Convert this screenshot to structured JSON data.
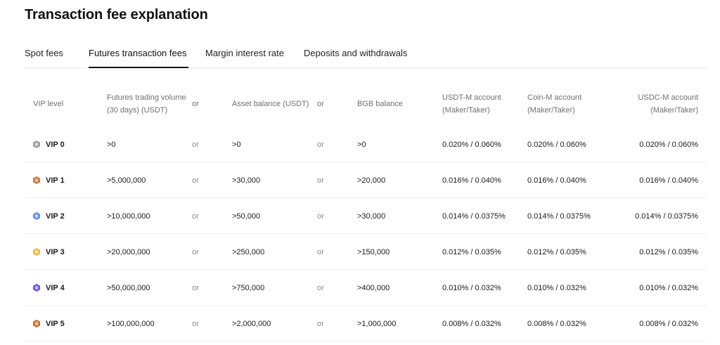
{
  "page": {
    "title": "Transaction fee explanation"
  },
  "tabs": [
    {
      "label": "Spot fees",
      "active": false
    },
    {
      "label": "Futures transaction fees",
      "active": true
    },
    {
      "label": "Margin interest rate",
      "active": false
    },
    {
      "label": "Deposits and withdrawals",
      "active": false
    }
  ],
  "table": {
    "headers": {
      "vip": "VIP level",
      "volume_line1": "Futures trading volume",
      "volume_line2": "(30 days) (USDT)",
      "or": "or",
      "asset": "Asset balance (USDT)",
      "bgb": "BGB balance",
      "usdtm_line1": "USDT-M account",
      "usdtm_line2": "(Maker/Taker)",
      "coinm_line1": "Coin-M account",
      "coinm_line2": "(Maker/Taker)",
      "usdcm_line1": "USDC-M account",
      "usdcm_line2": "(Maker/Taker)"
    },
    "rows": [
      {
        "vip": "VIP 0",
        "icon": "vip-0-badge-icon",
        "icon_color": "#9a9a9a",
        "volume": ">0",
        "or": "or",
        "asset": ">0",
        "bgb": ">0",
        "usdtm": "0.020% / 0.060%",
        "coinm": "0.020% / 0.060%",
        "usdcm": "0.020% / 0.060%"
      },
      {
        "vip": "VIP 1",
        "icon": "vip-1-badge-icon",
        "icon_color": "#c8793a",
        "volume": ">5,000,000",
        "or": "or",
        "asset": ">30,000",
        "bgb": ">20,000",
        "usdtm": "0.016% / 0.040%",
        "coinm": "0.016% / 0.040%",
        "usdcm": "0.016% / 0.040%"
      },
      {
        "vip": "VIP 2",
        "icon": "vip-2-badge-icon",
        "icon_color": "#5b8def",
        "volume": ">10,000,000",
        "or": "or",
        "asset": ">50,000",
        "bgb": ">30,000",
        "usdtm": "0.014% / 0.0375%",
        "coinm": "0.014% / 0.0375%",
        "usdcm": "0.014% / 0.0375%"
      },
      {
        "vip": "VIP 3",
        "icon": "vip-3-badge-icon",
        "icon_color": "#f0b43c",
        "volume": ">20,000,000",
        "or": "or",
        "asset": ">250,000",
        "bgb": ">150,000",
        "usdtm": "0.012% / 0.035%",
        "coinm": "0.012% / 0.035%",
        "usdcm": "0.012% / 0.035%"
      },
      {
        "vip": "VIP 4",
        "icon": "vip-4-badge-icon",
        "icon_color": "#6a4ee8",
        "volume": ">50,000,000",
        "or": "or",
        "asset": ">750,000",
        "bgb": ">400,000",
        "usdtm": "0.010% / 0.032%",
        "coinm": "0.010% / 0.032%",
        "usdcm": "0.010% / 0.032%"
      },
      {
        "vip": "VIP 5",
        "icon": "vip-5-badge-icon",
        "icon_color": "#c76a2a",
        "volume": ">100,000,000",
        "or": "or",
        "asset": ">2,000,000",
        "bgb": ">1,000,000",
        "usdtm": "0.008% / 0.032%",
        "coinm": "0.008% / 0.032%",
        "usdcm": "0.008% / 0.032%"
      }
    ]
  }
}
